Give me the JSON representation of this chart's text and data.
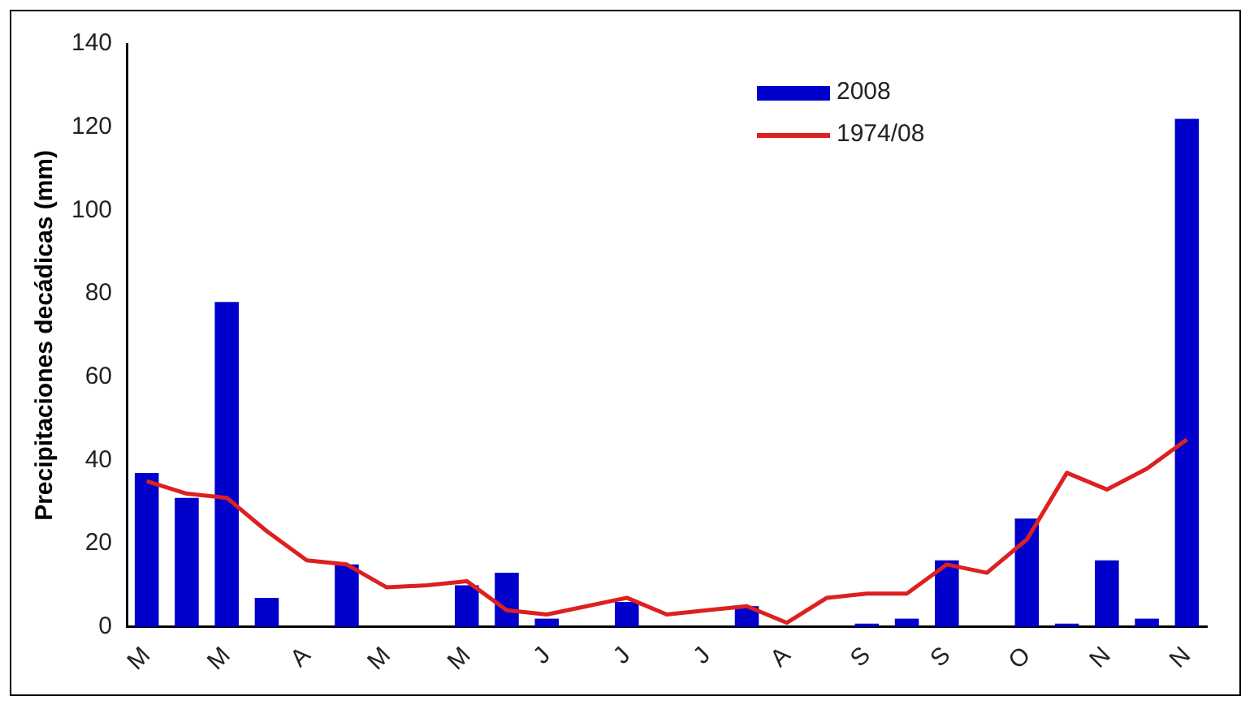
{
  "chart_data": {
    "type": "bar",
    "ylabel": "Precipitaciones decádicas (mm)",
    "categories": [
      "M",
      null,
      "M",
      null,
      "A",
      null,
      "M",
      null,
      "M",
      null,
      "J",
      null,
      "J",
      null,
      "J",
      null,
      "A",
      null,
      "S",
      null,
      "S",
      null,
      "O",
      null,
      "N",
      null,
      "N"
    ],
    "series": [
      {
        "name": "2008",
        "color": "#0000cc",
        "values": [
          37,
          31,
          78,
          7,
          0,
          15,
          0,
          0,
          10,
          13,
          2,
          0,
          6,
          0,
          0,
          5,
          0,
          0,
          0.8,
          2,
          16,
          0,
          26,
          0.8,
          16,
          2,
          122
        ]
      },
      {
        "name": "1974/08",
        "type": "line",
        "color": "#dd2020",
        "values": [
          35,
          32,
          31,
          23,
          16,
          15,
          9.5,
          10,
          11,
          4,
          3,
          5,
          7,
          3,
          4,
          5,
          1,
          7,
          8,
          8,
          15,
          13,
          21,
          37,
          33,
          38,
          45
        ]
      }
    ],
    "ylim": [
      0,
      140
    ],
    "yticks": [
      0,
      20,
      40,
      60,
      80,
      100,
      120,
      140
    ],
    "grid": false,
    "legend": "top right",
    "marker": "none"
  }
}
